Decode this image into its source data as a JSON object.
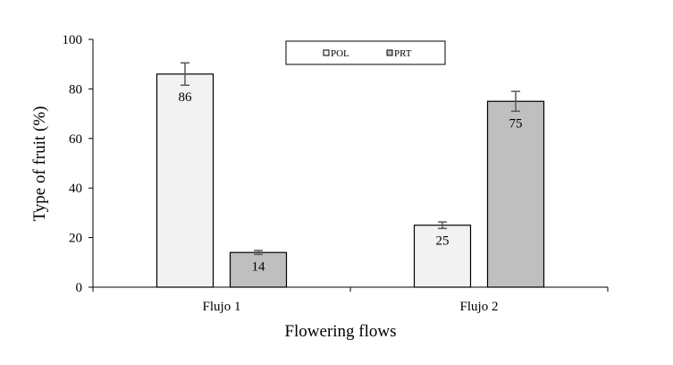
{
  "chart_data": {
    "type": "bar",
    "categories": [
      "Flujo 1",
      "Flujo 2"
    ],
    "series": [
      {
        "name": "POL",
        "values": [
          86,
          25
        ],
        "errors": [
          4.5,
          1.3
        ],
        "color": "#f2f2f2"
      },
      {
        "name": "PRT",
        "values": [
          14,
          75
        ],
        "errors": [
          0.8,
          4
        ],
        "color": "#bfbfbf"
      }
    ],
    "xlabel": "Flowering flows",
    "ylabel": "Type of fruit (%)",
    "ylim": [
      0,
      100
    ],
    "yticks": [
      0,
      20,
      40,
      60,
      80,
      100
    ],
    "grid": false,
    "legend_position": "top-center",
    "bar_edge_color": "#000000",
    "error_bar_color": "#595959"
  }
}
